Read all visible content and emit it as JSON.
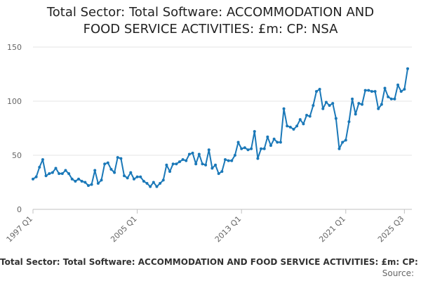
{
  "header": {
    "title_line1": "Total Sector: Total Software: ACCOMMODATION AND",
    "title_line2": "FOOD SERVICE ACTIVITIES: £m: CP: NSA"
  },
  "footer": {
    "caption": "Total Sector: Total Software: ACCOMMODATION AND FOOD SERVICE ACTIVITIES: £m: CP: NSA",
    "source": "Source:"
  },
  "colors": {
    "line": "#1a78b8",
    "grid": "#e6e6e6",
    "axis": "#c0c0c0"
  },
  "chart_data": {
    "type": "line",
    "title": "Total Sector: Total Software: ACCOMMODATION AND FOOD SERVICE ACTIVITIES: £m: CP: NSA",
    "xlabel": "",
    "ylabel": "",
    "ylim": [
      0,
      150
    ],
    "yticks": [
      0,
      50,
      100,
      150
    ],
    "xtick_labels": [
      "1997 Q1",
      "2005 Q1",
      "2013 Q1",
      "2021 Q1",
      "2025 Q3"
    ],
    "xtick_index": [
      0,
      32,
      64,
      96,
      114
    ],
    "series": [
      {
        "name": "Total Software",
        "start": "1997 Q1",
        "frequency": "quarterly",
        "values": [
          28,
          30,
          39,
          46,
          31,
          33,
          34,
          38,
          33,
          33,
          36,
          33,
          28,
          26,
          28,
          26,
          25,
          22,
          23,
          36,
          24,
          27,
          42,
          43,
          37,
          34,
          48,
          47,
          31,
          29,
          34,
          28,
          30,
          30,
          26,
          24,
          21,
          25,
          21,
          24,
          27,
          41,
          35,
          42,
          42,
          44,
          46,
          45,
          51,
          52,
          42,
          51,
          42,
          41,
          55,
          38,
          41,
          33,
          35,
          46,
          45,
          45,
          50,
          62,
          56,
          57,
          55,
          56,
          72,
          47,
          56,
          56,
          67,
          59,
          65,
          62,
          62,
          93,
          77,
          76,
          74,
          77,
          83,
          79,
          87,
          86,
          96,
          109,
          111,
          93,
          99,
          96,
          98,
          84,
          56,
          62,
          64,
          81,
          102,
          88,
          98,
          97,
          110,
          110,
          109,
          109,
          93,
          97,
          112,
          104,
          102,
          102,
          115,
          109,
          111,
          130
        ]
      }
    ]
  }
}
